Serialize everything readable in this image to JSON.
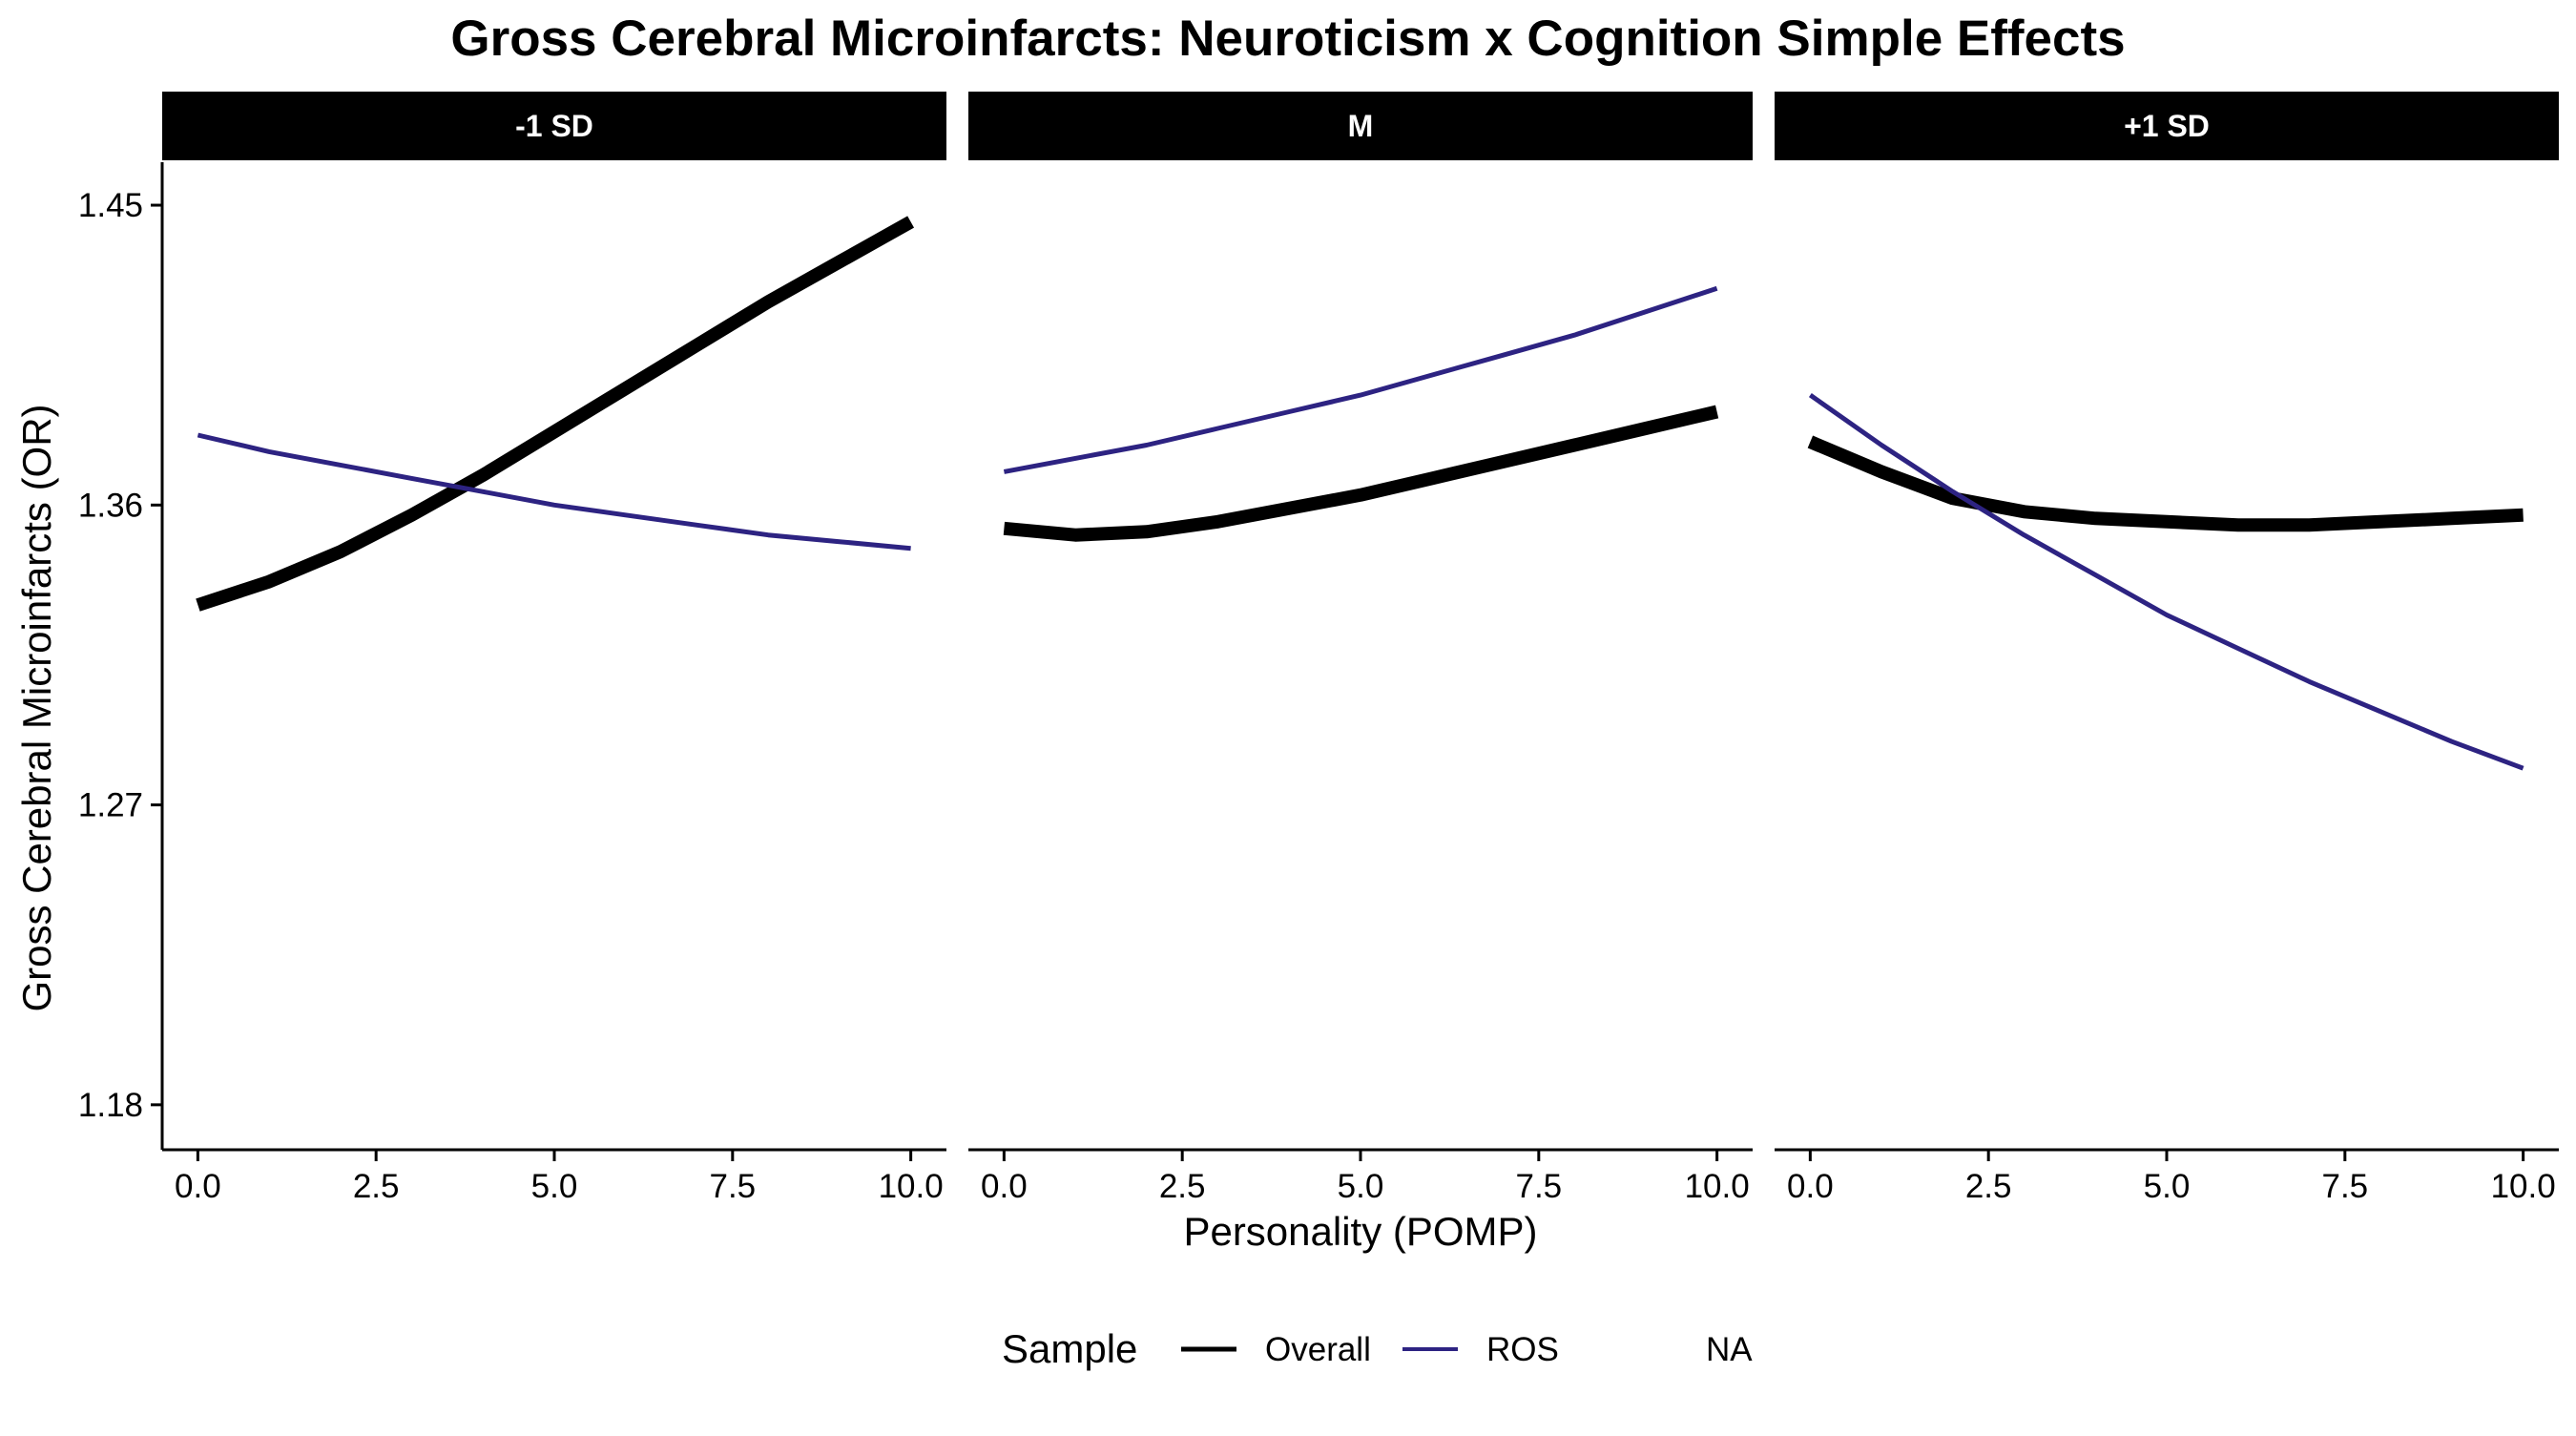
{
  "chart_data": {
    "type": "line",
    "title": "Gross Cerebral Microinfarcts: Neuroticism x Cognition Simple Effects",
    "xlabel": "Personality (POMP)",
    "ylabel": "Gross Cerebral Microinfarcts (OR)",
    "xlim": [
      -0.5,
      10.5
    ],
    "ylim": [
      1.1665,
      1.4629
    ],
    "x_ticks": [
      0.0,
      2.5,
      5.0,
      7.5,
      10.0
    ],
    "x_tick_labels": [
      "0.0",
      "2.5",
      "5.0",
      "7.5",
      "10.0"
    ],
    "y_ticks": [
      1.18,
      1.27,
      1.36,
      1.45
    ],
    "y_tick_labels": [
      "1.18",
      "1.27",
      "1.36",
      "1.45"
    ],
    "grid": false,
    "legend": {
      "title": "Sample",
      "position": "bottom",
      "entries": [
        {
          "label": "Overall",
          "color": "#000000"
        },
        {
          "label": "ROS",
          "color": "#2d2382"
        },
        {
          "label": "NA",
          "color": null
        }
      ]
    },
    "facets": [
      {
        "label": "-1 SD",
        "series": [
          {
            "name": "Overall",
            "color": "#000000",
            "x": [
              0,
              1,
              2,
              3,
              4,
              5,
              6,
              7,
              8,
              9,
              10
            ],
            "y": [
              1.33,
              1.337,
              1.346,
              1.357,
              1.369,
              1.382,
              1.395,
              1.408,
              1.421,
              1.433,
              1.445
            ]
          },
          {
            "name": "ROS",
            "color": "#2d2382",
            "x": [
              0,
              1,
              2,
              3,
              4,
              5,
              6,
              7,
              8,
              9,
              10
            ],
            "y": [
              1.381,
              1.376,
              1.372,
              1.368,
              1.364,
              1.36,
              1.357,
              1.354,
              1.351,
              1.349,
              1.347
            ]
          }
        ]
      },
      {
        "label": "M",
        "series": [
          {
            "name": "Overall",
            "color": "#000000",
            "x": [
              0,
              1,
              2,
              3,
              4,
              5,
              6,
              7,
              8,
              9,
              10
            ],
            "y": [
              1.353,
              1.351,
              1.352,
              1.355,
              1.359,
              1.363,
              1.368,
              1.373,
              1.378,
              1.383,
              1.388
            ]
          },
          {
            "name": "ROS",
            "color": "#2d2382",
            "x": [
              0,
              1,
              2,
              3,
              4,
              5,
              6,
              7,
              8,
              9,
              10
            ],
            "y": [
              1.37,
              1.374,
              1.378,
              1.383,
              1.388,
              1.393,
              1.399,
              1.405,
              1.411,
              1.418,
              1.425
            ]
          }
        ]
      },
      {
        "label": "+1 SD",
        "series": [
          {
            "name": "Overall",
            "color": "#000000",
            "x": [
              0,
              1,
              2,
              3,
              4,
              5,
              6,
              7,
              8,
              9,
              10
            ],
            "y": [
              1.379,
              1.37,
              1.362,
              1.358,
              1.356,
              1.355,
              1.354,
              1.354,
              1.355,
              1.356,
              1.357
            ]
          },
          {
            "name": "ROS",
            "color": "#2d2382",
            "x": [
              0,
              1,
              2,
              3,
              4,
              5,
              6,
              7,
              8,
              9,
              10
            ],
            "y": [
              1.393,
              1.378,
              1.364,
              1.351,
              1.339,
              1.327,
              1.317,
              1.307,
              1.298,
              1.289,
              1.281
            ]
          }
        ]
      }
    ]
  }
}
